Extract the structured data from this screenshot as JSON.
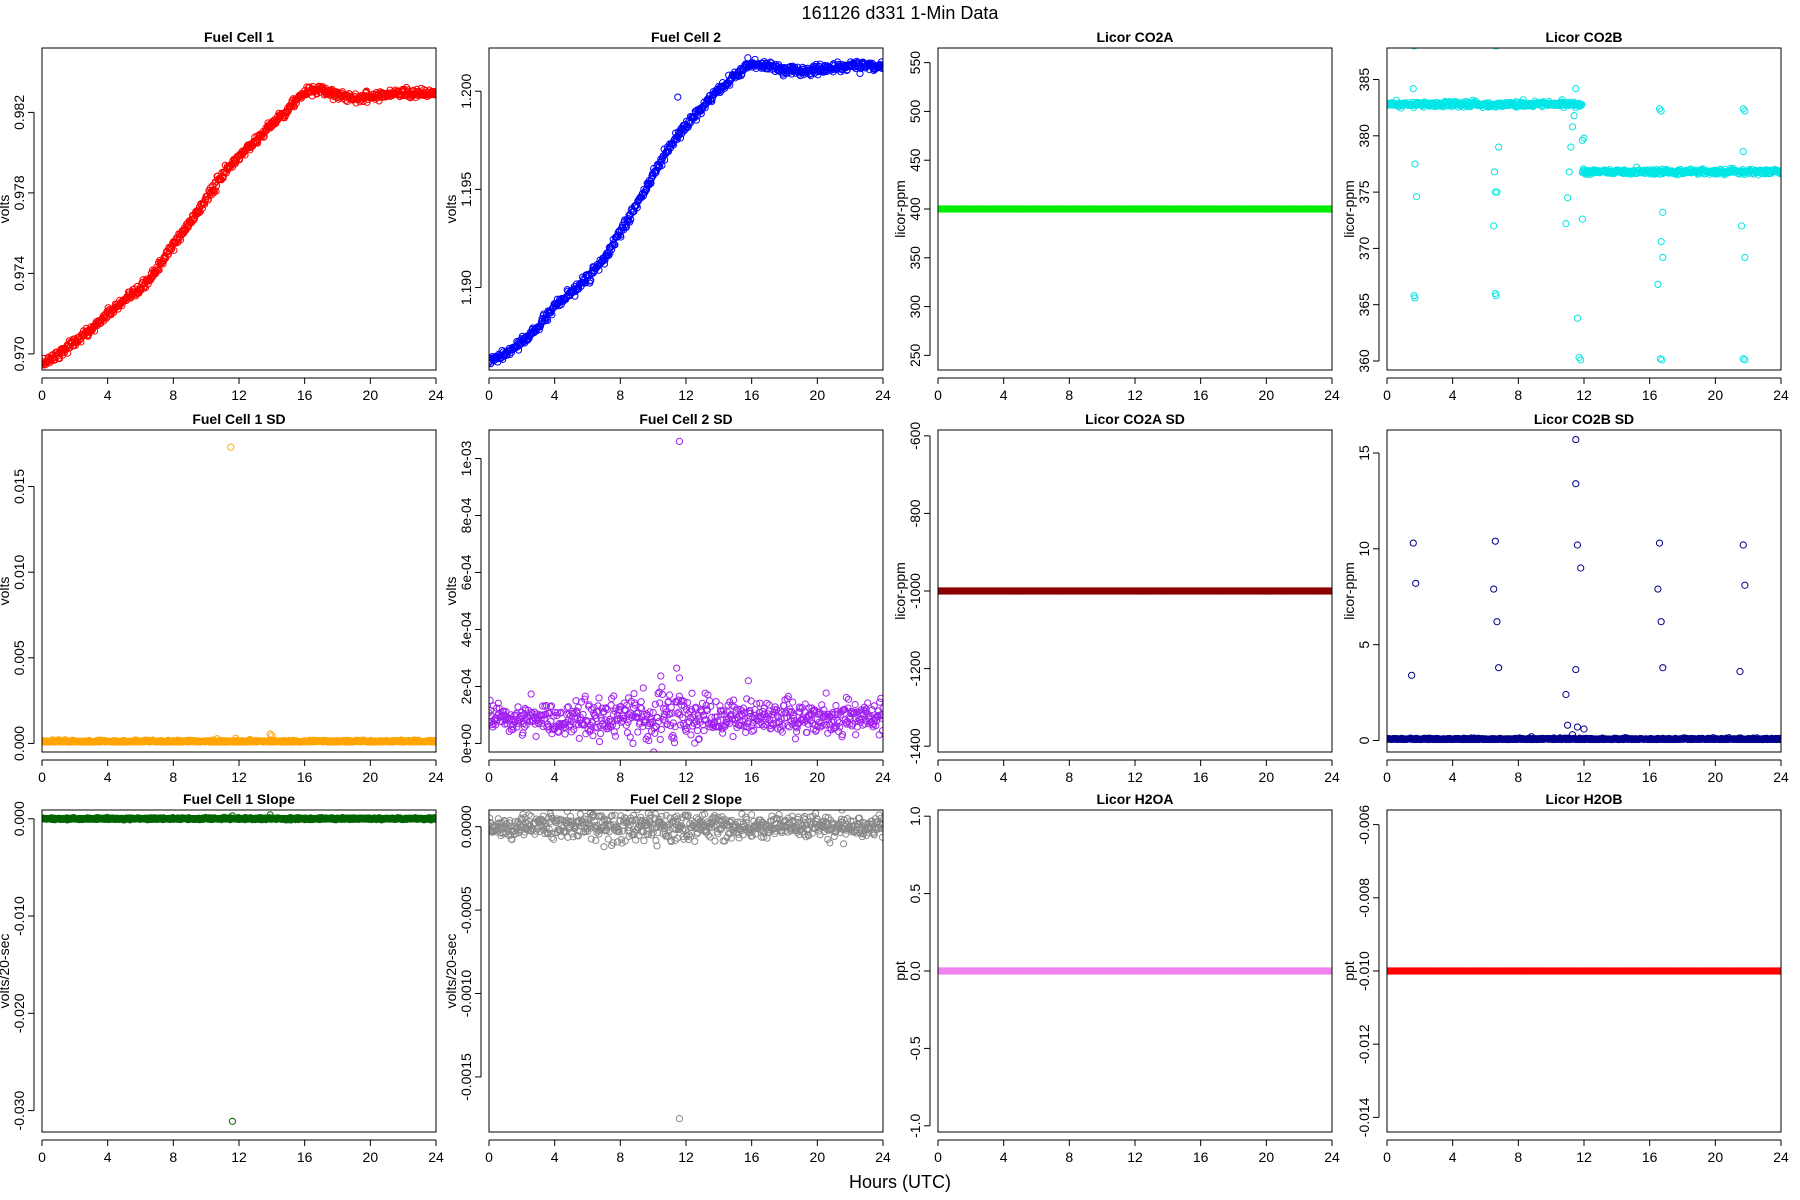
{
  "page": {
    "title": "161126    d331    1-Min Data",
    "x_label": "Hours (UTC)"
  },
  "chart_data": [
    {
      "id": "fc1",
      "type": "scatter",
      "title": "Fuel Cell 1",
      "ylabel": "volts",
      "xlim": [
        0,
        24
      ],
      "ylim": [
        0.9692,
        0.9852
      ],
      "xticks": [
        0,
        4,
        8,
        12,
        16,
        20,
        24
      ],
      "xtick_labels": [
        "0",
        "4",
        "8",
        "12",
        "16",
        "20",
        "24"
      ],
      "yticks": [
        0.97,
        0.974,
        0.978,
        0.982
      ],
      "ytick_labels": [
        "0.970",
        "0.974",
        "0.978",
        "0.982"
      ],
      "color": "#ff0000",
      "model": "ramp",
      "knots": [
        [
          0,
          0.9695
        ],
        [
          1,
          0.97
        ],
        [
          2,
          0.9706
        ],
        [
          3,
          0.9712
        ],
        [
          4,
          0.972
        ],
        [
          5,
          0.9726
        ],
        [
          6,
          0.9732
        ],
        [
          7,
          0.9742
        ],
        [
          8,
          0.9754
        ],
        [
          9,
          0.9765
        ],
        [
          10,
          0.9777
        ],
        [
          11,
          0.9789
        ],
        [
          12,
          0.9798
        ],
        [
          13,
          0.9806
        ],
        [
          14,
          0.9814
        ],
        [
          15,
          0.9822
        ],
        [
          16,
          0.983
        ],
        [
          17,
          0.9831
        ],
        [
          18,
          0.9829
        ],
        [
          19,
          0.9827
        ],
        [
          20,
          0.9828
        ],
        [
          21,
          0.9829
        ],
        [
          22,
          0.983
        ],
        [
          24,
          0.9829
        ]
      ],
      "noise": 0.00012,
      "outliers": []
    },
    {
      "id": "fc2",
      "type": "scatter",
      "title": "Fuel Cell 2",
      "ylabel": "volts",
      "xlim": [
        0,
        24
      ],
      "ylim": [
        1.1858,
        1.2022
      ],
      "xticks": [
        0,
        4,
        8,
        12,
        16,
        20,
        24
      ],
      "xtick_labels": [
        "0",
        "4",
        "8",
        "12",
        "16",
        "20",
        "24"
      ],
      "yticks": [
        1.19,
        1.195,
        1.2
      ],
      "ytick_labels": [
        "1.190",
        "1.195",
        "1.200"
      ],
      "color": "#0000ff",
      "model": "ramp",
      "knots": [
        [
          0,
          1.1862
        ],
        [
          1,
          1.1866
        ],
        [
          2,
          1.1872
        ],
        [
          3,
          1.188
        ],
        [
          4,
          1.189
        ],
        [
          5,
          1.1897
        ],
        [
          6,
          1.1905
        ],
        [
          7,
          1.1914
        ],
        [
          8,
          1.1928
        ],
        [
          9,
          1.1942
        ],
        [
          10,
          1.1957
        ],
        [
          11,
          1.1972
        ],
        [
          12,
          1.1982
        ],
        [
          13,
          1.1992
        ],
        [
          14,
          1.2
        ],
        [
          15,
          1.2008
        ],
        [
          16,
          1.2014
        ],
        [
          17,
          1.2013
        ],
        [
          18,
          1.2011
        ],
        [
          19,
          1.201
        ],
        [
          20,
          1.2011
        ],
        [
          21,
          1.2012
        ],
        [
          22,
          1.2013
        ],
        [
          24,
          1.2013
        ]
      ],
      "noise": 0.00012,
      "outliers": [
        [
          11.5,
          1.1997
        ]
      ]
    },
    {
      "id": "co2a",
      "type": "scatter",
      "title": "Licor CO2A",
      "ylabel": "licor-ppm",
      "xlim": [
        0,
        24
      ],
      "ylim": [
        235,
        565
      ],
      "xticks": [
        0,
        4,
        8,
        12,
        16,
        20,
        24
      ],
      "xtick_labels": [
        "0",
        "4",
        "8",
        "12",
        "16",
        "20",
        "24"
      ],
      "yticks": [
        250,
        300,
        350,
        400,
        450,
        500,
        550
      ],
      "ytick_labels": [
        "250",
        "300",
        "350",
        "400",
        "450",
        "500",
        "550"
      ],
      "color": "#00ee00",
      "model": "constant",
      "level": 400,
      "noise": 0,
      "outliers": []
    },
    {
      "id": "co2b",
      "type": "scatter",
      "title": "Licor CO2B",
      "ylabel": "licor-ppm",
      "xlim": [
        0,
        24
      ],
      "ylim": [
        359.2,
        387.8
      ],
      "xticks": [
        0,
        4,
        8,
        12,
        16,
        20,
        24
      ],
      "xtick_labels": [
        "0",
        "4",
        "8",
        "12",
        "16",
        "20",
        "24"
      ],
      "yticks": [
        360,
        365,
        370,
        375,
        380,
        385
      ],
      "ytick_labels": [
        "360",
        "365",
        "370",
        "375",
        "380",
        "385"
      ],
      "color": "#00e5e5",
      "model": "step",
      "level_before": 382.8,
      "level_after": 376.8,
      "step_at": 11.9,
      "noise": 0.12,
      "outliers": [
        [
          1.6,
          388
        ],
        [
          1.7,
          388
        ],
        [
          1.6,
          384.2
        ],
        [
          1.7,
          377.5
        ],
        [
          1.8,
          374.6
        ],
        [
          1.65,
          365.8
        ],
        [
          1.7,
          365.6
        ],
        [
          6.6,
          388
        ],
        [
          6.7,
          388
        ],
        [
          6.55,
          376.8
        ],
        [
          6.6,
          375
        ],
        [
          6.7,
          375
        ],
        [
          6.8,
          379
        ],
        [
          6.5,
          372
        ],
        [
          6.6,
          366
        ],
        [
          6.65,
          365.8
        ],
        [
          8.3,
          383.2
        ],
        [
          10.9,
          372.2
        ],
        [
          11.0,
          374.5
        ],
        [
          11.1,
          376.8
        ],
        [
          11.2,
          379
        ],
        [
          11.3,
          380.8
        ],
        [
          11.4,
          381.8
        ],
        [
          11.5,
          382.5
        ],
        [
          11.5,
          384.2
        ],
        [
          11.6,
          363.8
        ],
        [
          11.7,
          360.3
        ],
        [
          11.8,
          360.1
        ],
        [
          11.9,
          372.6
        ],
        [
          11.9,
          379.6
        ],
        [
          12.0,
          379.8
        ],
        [
          16.6,
          382.4
        ],
        [
          16.7,
          382.2
        ],
        [
          16.8,
          373.2
        ],
        [
          16.7,
          370.6
        ],
        [
          16.8,
          369.2
        ],
        [
          16.5,
          366.8
        ],
        [
          16.65,
          360.2
        ],
        [
          16.75,
          360.1
        ],
        [
          21.7,
          382.4
        ],
        [
          21.8,
          382.2
        ],
        [
          21.7,
          378.6
        ],
        [
          21.6,
          372
        ],
        [
          21.8,
          369.2
        ],
        [
          21.7,
          360.2
        ],
        [
          21.8,
          360.1
        ]
      ]
    },
    {
      "id": "fc1sd",
      "type": "scatter",
      "title": "Fuel Cell 1 SD",
      "ylabel": "volts",
      "xlim": [
        0,
        24
      ],
      "ylim": [
        -0.0005,
        0.0183
      ],
      "xticks": [
        0,
        4,
        8,
        12,
        16,
        20,
        24
      ],
      "xtick_labels": [
        "0",
        "4",
        "8",
        "12",
        "16",
        "20",
        "24"
      ],
      "yticks": [
        0,
        0.005,
        0.01,
        0.015
      ],
      "ytick_labels": [
        "0.000",
        "0.005",
        "0.010",
        "0.015"
      ],
      "color": "#ffa500",
      "model": "noise",
      "level": 8e-05,
      "noise": 5e-05,
      "outliers": [
        [
          11.5,
          0.0173
        ],
        [
          13.9,
          0.00055
        ],
        [
          14.0,
          0.00045
        ],
        [
          11.8,
          0.0003
        ]
      ]
    },
    {
      "id": "fc2sd",
      "type": "scatter",
      "title": "Fuel Cell 2 SD",
      "ylabel": "volts",
      "xlim": [
        0,
        24
      ],
      "ylim": [
        -3e-05,
        0.0011
      ],
      "xticks": [
        0,
        4,
        8,
        12,
        16,
        20,
        24
      ],
      "xtick_labels": [
        "0",
        "4",
        "8",
        "12",
        "16",
        "20",
        "24"
      ],
      "yticks": [
        0,
        0.0002,
        0.0004,
        0.0006,
        0.0008,
        0.001
      ],
      "ytick_labels": [
        "0e+00",
        "2e-04",
        "4e-04",
        "6e-04",
        "8e-04",
        "1e-03"
      ],
      "color": "#a020f0",
      "model": "noise_var",
      "level": 9e-05,
      "noise": 3.5e-05,
      "outliers": [
        [
          11.6,
          0.00106
        ],
        [
          11.6,
          0.00023
        ],
        [
          15.8,
          0.00022
        ]
      ]
    },
    {
      "id": "co2asd",
      "type": "scatter",
      "title": "Licor CO2A SD",
      "ylabel": "licor-ppm",
      "xlim": [
        0,
        24
      ],
      "ylim": [
        -1415,
        -585
      ],
      "xticks": [
        0,
        4,
        8,
        12,
        16,
        20,
        24
      ],
      "xtick_labels": [
        "0",
        "4",
        "8",
        "12",
        "16",
        "20",
        "24"
      ],
      "yticks": [
        -1400,
        -1200,
        -1000,
        -800,
        -600
      ],
      "ytick_labels": [
        "-1400",
        "-1200",
        "-1000",
        "-800",
        "-600"
      ],
      "color": "#8b0000",
      "model": "constant",
      "level": -1000,
      "noise": 0,
      "outliers": []
    },
    {
      "id": "co2bsd",
      "type": "scatter",
      "title": "Licor CO2B SD",
      "ylabel": "licor-ppm",
      "xlim": [
        0,
        24
      ],
      "ylim": [
        -0.6,
        16.2
      ],
      "xticks": [
        0,
        4,
        8,
        12,
        16,
        20,
        24
      ],
      "xtick_labels": [
        "0",
        "4",
        "8",
        "12",
        "16",
        "20",
        "24"
      ],
      "yticks": [
        0,
        5,
        10,
        15
      ],
      "ytick_labels": [
        "0",
        "5",
        "10",
        "15"
      ],
      "color": "#00008b",
      "model": "noise",
      "level": 0.05,
      "noise": 0.03,
      "outliers": [
        [
          1.6,
          10.3
        ],
        [
          1.75,
          8.2
        ],
        [
          1.5,
          3.4
        ],
        [
          6.6,
          10.4
        ],
        [
          6.5,
          7.9
        ],
        [
          6.7,
          6.2
        ],
        [
          6.8,
          3.8
        ],
        [
          11.5,
          15.7
        ],
        [
          11.5,
          13.4
        ],
        [
          11.6,
          10.2
        ],
        [
          11.8,
          9.0
        ],
        [
          11.5,
          3.7
        ],
        [
          10.9,
          2.4
        ],
        [
          11.0,
          0.8
        ],
        [
          11.3,
          0.3
        ],
        [
          11.6,
          0.7
        ],
        [
          12.0,
          0.6
        ],
        [
          8.8,
          0.2
        ],
        [
          16.6,
          10.3
        ],
        [
          16.5,
          7.9
        ],
        [
          16.7,
          6.2
        ],
        [
          16.8,
          3.8
        ],
        [
          21.7,
          10.2
        ],
        [
          21.8,
          8.1
        ],
        [
          21.5,
          3.6
        ]
      ]
    },
    {
      "id": "fc1slope",
      "type": "scatter",
      "title": "Fuel Cell 1 Slope",
      "ylabel": "volts/20-sec",
      "xlim": [
        0,
        24
      ],
      "ylim": [
        -0.0322,
        0.0009
      ],
      "xticks": [
        0,
        4,
        8,
        12,
        16,
        20,
        24
      ],
      "xtick_labels": [
        "0",
        "4",
        "8",
        "12",
        "16",
        "20",
        "24"
      ],
      "yticks": [
        0,
        -0.01,
        -0.02,
        -0.03
      ],
      "ytick_labels": [
        "0.000",
        "-0.010",
        "-0.020",
        "-0.030"
      ],
      "color": "#006400",
      "model": "noise",
      "level": 0,
      "noise": 5e-05,
      "outliers": [
        [
          11.6,
          -0.0311
        ],
        [
          13.9,
          0.0004
        ],
        [
          11.6,
          0.0003
        ]
      ]
    },
    {
      "id": "fc2slope",
      "type": "scatter",
      "title": "Fuel Cell 2 Slope",
      "ylabel": "volts/20-sec",
      "xlim": [
        0,
        24
      ],
      "ylim": [
        -0.00183,
        0.0001
      ],
      "xticks": [
        0,
        4,
        8,
        12,
        16,
        20,
        24
      ],
      "xtick_labels": [
        "0",
        "4",
        "8",
        "12",
        "16",
        "20",
        "24"
      ],
      "yticks": [
        0,
        -0.0005,
        -0.001,
        -0.0015
      ],
      "ytick_labels": [
        "0.0000",
        "-0.0005",
        "-0.0010",
        "-0.0015"
      ],
      "color": "#888888",
      "model": "noise_var",
      "level": 0,
      "noise": 4e-05,
      "outliers": [
        [
          11.6,
          -0.00175
        ],
        [
          21.5,
          0.0001
        ],
        [
          9.7,
          8e-05
        ],
        [
          7.0,
          -0.00012
        ]
      ]
    },
    {
      "id": "h2oa",
      "type": "scatter",
      "title": "Licor H2OA",
      "ylabel": "ppt",
      "xlim": [
        0,
        24
      ],
      "ylim": [
        -1.04,
        1.04
      ],
      "xticks": [
        0,
        4,
        8,
        12,
        16,
        20,
        24
      ],
      "xtick_labels": [
        "0",
        "4",
        "8",
        "12",
        "16",
        "20",
        "24"
      ],
      "yticks": [
        -1,
        -0.5,
        0,
        0.5,
        1
      ],
      "ytick_labels": [
        "-1.0",
        "-0.5",
        "0.0",
        "0.5",
        "1.0"
      ],
      "color": "#ee82ee",
      "model": "constant",
      "level": 0,
      "noise": 0,
      "outliers": []
    },
    {
      "id": "h2ob",
      "type": "scatter",
      "title": "Licor H2OB",
      "ylabel": "ppt",
      "xlim": [
        0,
        24
      ],
      "ylim": [
        -0.0144,
        -0.0056
      ],
      "xticks": [
        0,
        4,
        8,
        12,
        16,
        20,
        24
      ],
      "xtick_labels": [
        "0",
        "4",
        "8",
        "12",
        "16",
        "20",
        "24"
      ],
      "yticks": [
        -0.014,
        -0.012,
        -0.01,
        -0.008,
        -0.006
      ],
      "ytick_labels": [
        "-0.014",
        "-0.012",
        "-0.010",
        "-0.008",
        "-0.006"
      ],
      "color": "#ff0000",
      "model": "constant",
      "level": -0.01,
      "noise": 0,
      "outliers": []
    }
  ]
}
